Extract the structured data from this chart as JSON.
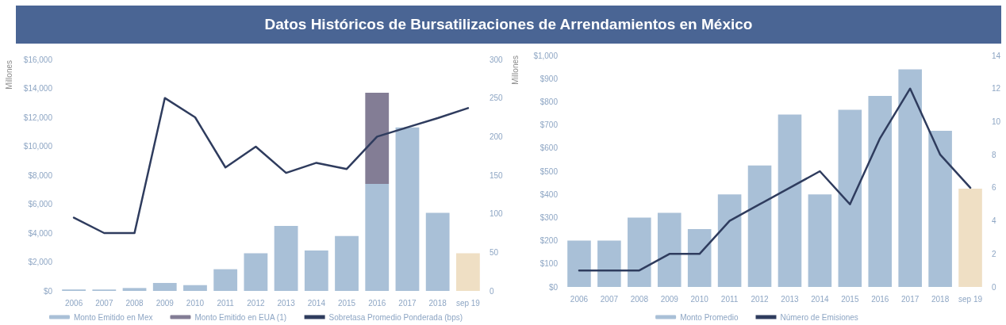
{
  "chart_data": [
    {
      "type": "bar",
      "title": "Datos Históricos de Bursatilizaciones de Arrendamientos en México",
      "ylabel": "Millones",
      "categories": [
        "2006",
        "2007",
        "2008",
        "2009",
        "2010",
        "2011",
        "2012",
        "2013",
        "2014",
        "2015",
        "2016",
        "2017",
        "2018",
        "sep 19"
      ],
      "stacked": true,
      "series": [
        {
          "name": "Monto Emitido en Mex",
          "color": "#a9c0d7",
          "colors": [
            "#a9c0d7",
            "#a9c0d7",
            "#a9c0d7",
            "#a9c0d7",
            "#a9c0d7",
            "#a9c0d7",
            "#a9c0d7",
            "#a9c0d7",
            "#a9c0d7",
            "#a9c0d7",
            "#a9c0d7",
            "#a9c0d7",
            "#a9c0d7",
            "#efdfc4"
          ],
          "values": [
            100,
            100,
            200,
            550,
            400,
            1500,
            2600,
            4500,
            2800,
            3800,
            7400,
            11300,
            5400,
            2600
          ]
        },
        {
          "name": "Monto Emitido en EUA (1)",
          "color": "#837d95",
          "values": [
            null,
            null,
            null,
            null,
            null,
            null,
            null,
            null,
            null,
            null,
            6300,
            null,
            null,
            null
          ]
        },
        {
          "name": "Sobretasa Promedio Ponderada (bps)",
          "type": "line",
          "axis": "y2",
          "color": "#2f3c5e",
          "values": [
            95,
            75,
            75,
            250,
            225,
            160,
            187,
            153,
            166,
            158,
            200,
            212,
            224,
            237
          ]
        }
      ],
      "ylim": [
        0,
        16000
      ],
      "yticks": [
        {
          "value": 0,
          "label": "$0"
        },
        {
          "value": 2000,
          "label": "$2,000"
        },
        {
          "value": 4000,
          "label": "$4,000"
        },
        {
          "value": 6000,
          "label": "$6,000"
        },
        {
          "value": 8000,
          "label": "$8,000"
        },
        {
          "value": 10000,
          "label": "$10,000"
        },
        {
          "value": 12000,
          "label": "$12,000"
        },
        {
          "value": 14000,
          "label": "$14,000"
        },
        {
          "value": 16000,
          "label": "$16,000"
        }
      ],
      "y2lim": [
        0,
        300
      ],
      "y2ticks": [
        0,
        50,
        100,
        150,
        200,
        250,
        300
      ],
      "legend": "bottom",
      "marker": "none",
      "line_style": "solid",
      "grid": false
    },
    {
      "type": "bar",
      "ylabel": "Millones",
      "categories": [
        "2006",
        "2007",
        "2008",
        "2009",
        "2010",
        "2011",
        "2012",
        "2013",
        "2014",
        "2015",
        "2016",
        "2017",
        "2018",
        "sep 19"
      ],
      "series": [
        {
          "name": "Monto Promedio",
          "color": "#a9c0d7",
          "colors": [
            "#a9c0d7",
            "#a9c0d7",
            "#a9c0d7",
            "#a9c0d7",
            "#a9c0d7",
            "#a9c0d7",
            "#a9c0d7",
            "#a9c0d7",
            "#a9c0d7",
            "#a9c0d7",
            "#a9c0d7",
            "#a9c0d7",
            "#a9c0d7",
            "#efdfc4"
          ],
          "values": [
            200,
            200,
            300,
            320,
            250,
            400,
            525,
            745,
            400,
            765,
            825,
            940,
            675,
            425
          ]
        },
        {
          "name": "Número de Emisiones",
          "type": "line",
          "axis": "y2",
          "color": "#2f3c5e",
          "values": [
            1,
            1,
            1,
            2,
            2,
            4,
            5,
            6,
            7,
            5,
            9,
            12,
            8,
            6
          ]
        }
      ],
      "ylim": [
        0,
        1000
      ],
      "yticks": [
        {
          "value": 0,
          "label": "$0"
        },
        {
          "value": 100,
          "label": "$100"
        },
        {
          "value": 200,
          "label": "$200"
        },
        {
          "value": 300,
          "label": "$300"
        },
        {
          "value": 400,
          "label": "$400"
        },
        {
          "value": 500,
          "label": "$500"
        },
        {
          "value": 600,
          "label": "$600"
        },
        {
          "value": 700,
          "label": "$700"
        },
        {
          "value": 800,
          "label": "$800"
        },
        {
          "value": 900,
          "label": "$900"
        },
        {
          "value": 1000,
          "label": "$1,000"
        }
      ],
      "y2lim": [
        0,
        14
      ],
      "y2ticks": [
        0,
        2,
        4,
        6,
        8,
        10,
        12,
        14
      ],
      "legend": "bottom",
      "marker": "none",
      "line_style": "solid",
      "grid": false
    }
  ]
}
